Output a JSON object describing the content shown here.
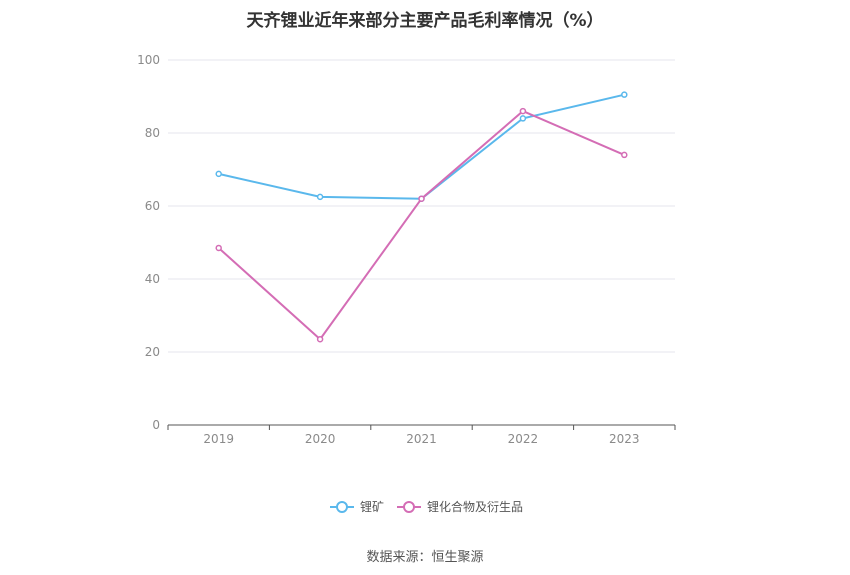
{
  "chart_data": {
    "type": "line",
    "title": "天齐锂业近年来部分主要产品毛利率情况（%）",
    "categories": [
      "2019",
      "2020",
      "2021",
      "2022",
      "2023"
    ],
    "series": [
      {
        "name": "锂矿",
        "color": "#5ab8ec",
        "values": [
          68.8,
          62.5,
          62.0,
          84.0,
          90.5
        ]
      },
      {
        "name": "锂化合物及衍生品",
        "color": "#d46db5",
        "values": [
          48.5,
          23.5,
          62.0,
          86.0,
          74.0
        ]
      }
    ],
    "ylim": [
      0,
      100
    ],
    "yticks": [
      0,
      20,
      40,
      60,
      80,
      100
    ],
    "grid": true,
    "legend_position": "bottom"
  },
  "source": "数据来源：恒生聚源"
}
